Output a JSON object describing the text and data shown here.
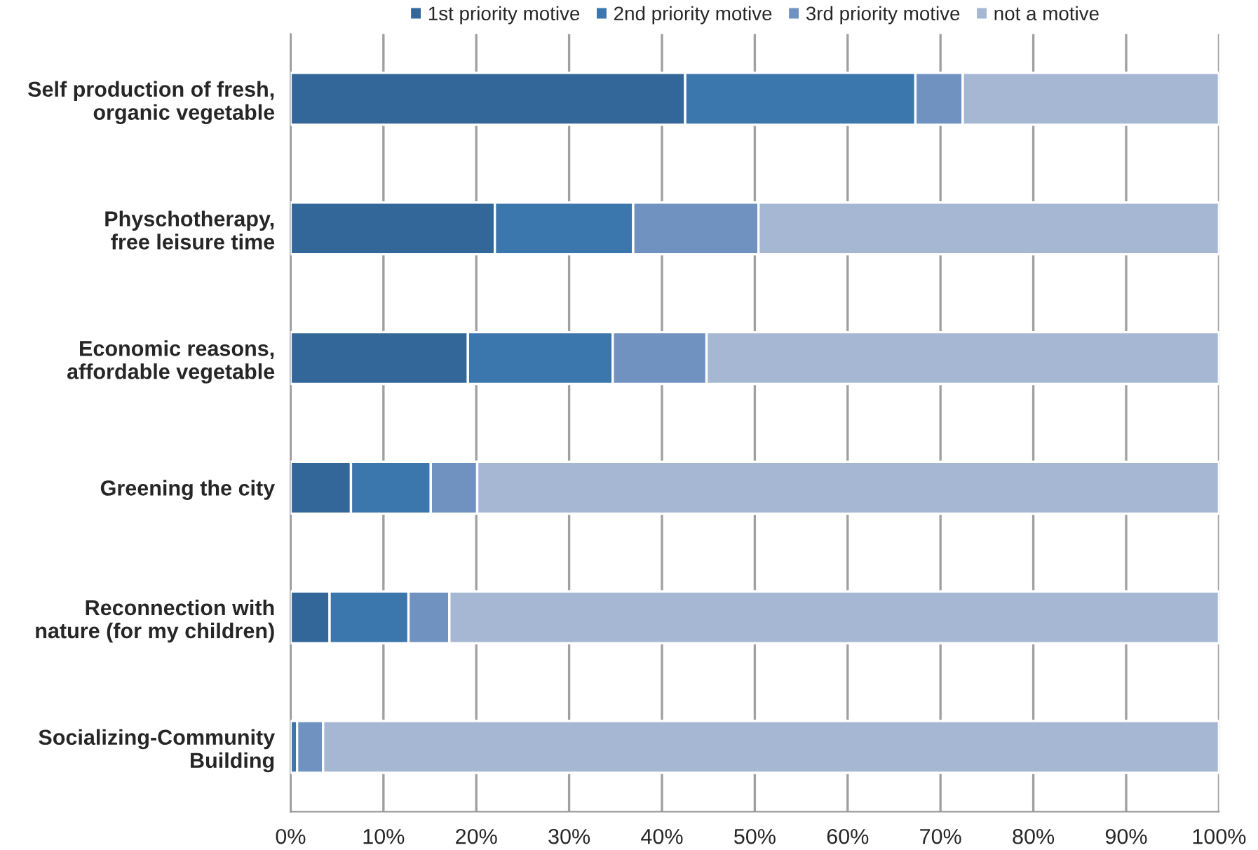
{
  "chart_data": {
    "type": "bar",
    "orientation": "horizontal",
    "stacked": true,
    "categories": [
      "Self production of fresh,\norganic vegetable",
      "Physchotherapy,\nfree leisure time",
      "Economic reasons,\naffordable vegetable",
      "Greening the city",
      "Reconnection with\nnature (for my children)",
      "Socializing-Community\nBuilding"
    ],
    "series": [
      {
        "name": "1st priority motive",
        "color": "#33679a",
        "values": [
          42.5,
          22.0,
          19.1,
          6.5,
          4.2,
          0
        ]
      },
      {
        "name": "2nd priority motive",
        "color": "#3b76ad",
        "values": [
          24.8,
          14.9,
          15.6,
          8.6,
          8.5,
          0.7
        ]
      },
      {
        "name": "3rd priority motive",
        "color": "#7092c0",
        "values": [
          5.1,
          13.5,
          10.1,
          5.0,
          4.4,
          2.8
        ]
      },
      {
        "name": "not a motive",
        "color": "#a6b7d3",
        "values": [
          27.6,
          49.6,
          55.2,
          79.9,
          82.9,
          96.5
        ]
      }
    ],
    "xlim": [
      0,
      100
    ],
    "xticks": [
      {
        "value": 0,
        "label": "0%"
      },
      {
        "value": 10,
        "label": "10%"
      },
      {
        "value": 20,
        "label": "20%"
      },
      {
        "value": 30,
        "label": "30%"
      },
      {
        "value": 40,
        "label": "40%"
      },
      {
        "value": 50,
        "label": "50%"
      },
      {
        "value": 60,
        "label": "60%"
      },
      {
        "value": 70,
        "label": "70%"
      },
      {
        "value": 80,
        "label": "80%"
      },
      {
        "value": 90,
        "label": "90%"
      },
      {
        "value": 100,
        "label": "100%"
      }
    ],
    "grid": "x",
    "legend": "top"
  }
}
